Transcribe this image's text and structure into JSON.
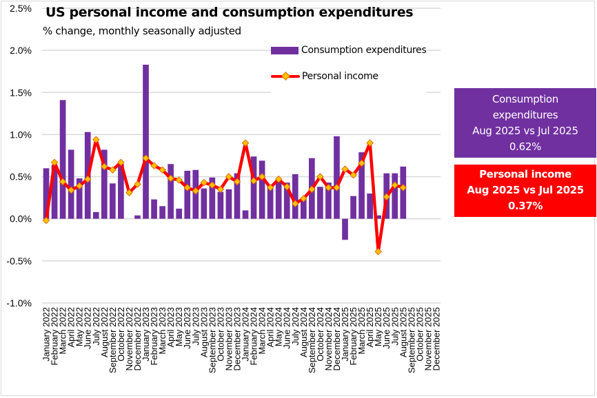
{
  "chart_data": {
    "type": "bar",
    "title": "US personal income and consumption expenditures",
    "subtitle": "% change, monthly seasonally adjusted",
    "xlabel": "",
    "ylabel": "",
    "ylim": [
      -1.0,
      2.5
    ],
    "yticks": [
      2.5,
      2.0,
      1.5,
      1.0,
      0.5,
      0.0,
      -0.5,
      -1.0
    ],
    "ytick_labels": [
      "2.5%",
      "2.0%",
      "1.5%",
      "1.0%",
      "0.5%",
      "0.0%",
      "-0.5%",
      "-1.0%"
    ],
    "grid": true,
    "legend_position": "top-right",
    "categories": [
      "January 2022",
      "February 2022",
      "March 2022",
      "April 2022",
      "May 2022",
      "June 2022",
      "July 2022",
      "August 2022",
      "September 2022",
      "October 2022",
      "November 2022",
      "December 2022",
      "January 2023",
      "February 2023",
      "March 2023",
      "April 2023",
      "May 2023",
      "June 2023",
      "July 2023",
      "August 2023",
      "September 2023",
      "October 2023",
      "November 2023",
      "December 2023",
      "January 2024",
      "February 2024",
      "March 2024",
      "April 2024",
      "May 2024",
      "June 2024",
      "July 2024",
      "August 2024",
      "September 2024",
      "October 2024",
      "November 2024",
      "December 2024",
      "January 2025",
      "February 2025",
      "March 2025",
      "April 2025",
      "May 2025",
      "June 2025",
      "July 2025",
      "August 2025",
      "September 2025",
      "October 2025",
      "November 2025",
      "December 2025"
    ],
    "series": [
      {
        "name": "Consumption expenditures",
        "kind": "bar",
        "color": "#7030a0",
        "values": [
          0.6,
          0.64,
          1.41,
          0.82,
          0.48,
          1.03,
          0.08,
          0.82,
          0.42,
          0.65,
          0.0,
          0.04,
          1.83,
          0.23,
          0.15,
          0.65,
          0.12,
          0.57,
          0.58,
          0.36,
          0.49,
          0.32,
          0.35,
          0.54,
          0.1,
          0.74,
          0.69,
          0.38,
          0.45,
          0.43,
          0.53,
          0.25,
          0.72,
          0.38,
          0.43,
          0.98,
          -0.25,
          0.27,
          0.79,
          0.3,
          0.04,
          0.54,
          0.54,
          0.62,
          null,
          null,
          null,
          null
        ]
      },
      {
        "name": "Personal income",
        "kind": "line",
        "color": "#ff0000",
        "marker_color": "#ffc000",
        "values": [
          -0.02,
          0.67,
          0.44,
          0.34,
          0.39,
          0.47,
          0.94,
          0.62,
          0.58,
          0.67,
          0.31,
          0.41,
          0.72,
          0.63,
          0.58,
          0.48,
          0.46,
          0.37,
          0.33,
          0.43,
          0.4,
          0.35,
          0.5,
          0.44,
          0.9,
          0.45,
          0.5,
          0.37,
          0.47,
          0.38,
          0.18,
          0.24,
          0.35,
          0.5,
          0.37,
          0.37,
          0.59,
          0.52,
          0.66,
          0.9,
          -0.39,
          0.26,
          0.4,
          0.37,
          null,
          null,
          null,
          null
        ]
      }
    ]
  },
  "legend": {
    "items": [
      {
        "label": "Consumption expenditures"
      },
      {
        "label": "Personal income"
      }
    ]
  },
  "callouts": {
    "consumption": {
      "lines": [
        "Consumption",
        "expenditures",
        "Aug 2025 vs Jul 2025",
        "0.62%"
      ],
      "color": "#7030a0"
    },
    "income": {
      "lines": [
        "Personal income",
        "Aug 2025 vs Jul 2025",
        "0.37%"
      ],
      "color": "#ff0000"
    }
  }
}
